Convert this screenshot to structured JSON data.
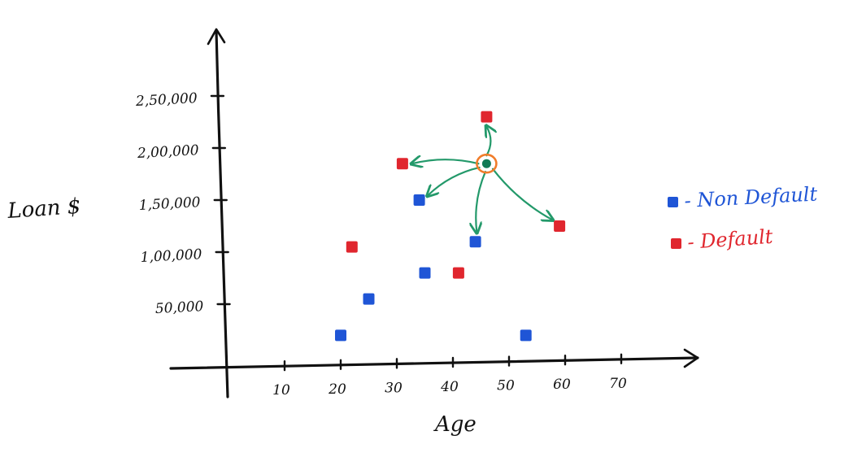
{
  "chart_data": {
    "type": "scatter",
    "xlabel": "Age",
    "ylabel": "Loan $",
    "x_ticks": [
      "10",
      "20",
      "30",
      "40",
      "50",
      "60",
      "70"
    ],
    "y_ticks": [
      "50,000",
      "1,00,000",
      "1,50,000",
      "2,00,000",
      "2,50,000"
    ],
    "xlim": [
      0,
      85
    ],
    "ylim": [
      -10000,
      290000
    ],
    "grid": false,
    "legend_position": "right",
    "series": [
      {
        "name": "Non Default",
        "color": "#1f55d6",
        "points": [
          {
            "x": 20,
            "y": 20000
          },
          {
            "x": 25,
            "y": 55000
          },
          {
            "x": 34,
            "y": 150000
          },
          {
            "x": 35,
            "y": 80000
          },
          {
            "x": 44,
            "y": 110000
          },
          {
            "x": 53,
            "y": 20000
          }
        ]
      },
      {
        "name": "Default",
        "color": "#e0262e",
        "points": [
          {
            "x": 22,
            "y": 105000
          },
          {
            "x": 31,
            "y": 185000
          },
          {
            "x": 41,
            "y": 80000
          },
          {
            "x": 46,
            "y": 230000
          },
          {
            "x": 59,
            "y": 125000
          }
        ]
      }
    ],
    "query_point": {
      "x": 46,
      "y": 185000,
      "color": "#127a55",
      "ring_color": "#f07c2a",
      "arrow_color": "#23996a"
    },
    "legend": [
      {
        "marker_color": "#1f55d6",
        "label": "- Non Default"
      },
      {
        "marker_color": "#e0262e",
        "label": "- Default"
      }
    ]
  }
}
